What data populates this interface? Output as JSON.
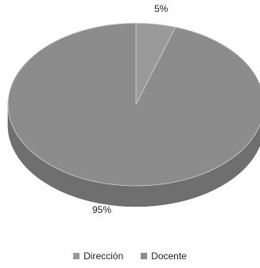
{
  "chart_data": {
    "type": "pie",
    "title": "",
    "categories": [
      "Dirección",
      "Docente"
    ],
    "values": [
      5,
      95
    ],
    "data_labels": [
      "5%",
      "95%"
    ],
    "colors": [
      "#9a9a9a",
      "#8c8c8c"
    ],
    "legend_position": "bottom",
    "style": "3d"
  }
}
